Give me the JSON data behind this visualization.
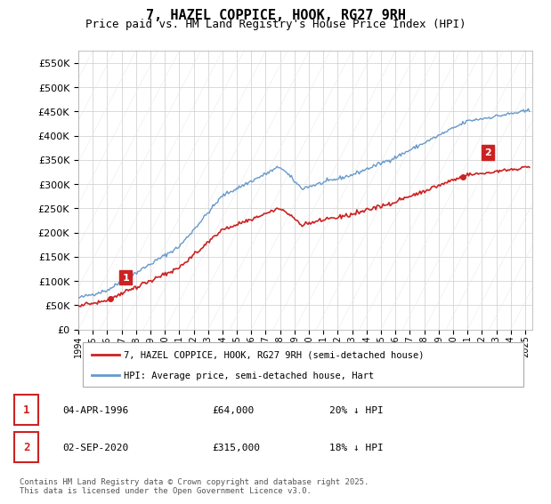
{
  "title": "7, HAZEL COPPICE, HOOK, RG27 9RH",
  "subtitle": "Price paid vs. HM Land Registry's House Price Index (HPI)",
  "legend_line1": "7, HAZEL COPPICE, HOOK, RG27 9RH (semi-detached house)",
  "legend_line2": "HPI: Average price, semi-detached house, Hart",
  "footnote": "Contains HM Land Registry data © Crown copyright and database right 2025.\nThis data is licensed under the Open Government Licence v3.0.",
  "sale1_label": "1",
  "sale1_date": "04-APR-1996",
  "sale1_price": "£64,000",
  "sale1_hpi": "20% ↓ HPI",
  "sale2_label": "2",
  "sale2_date": "02-SEP-2020",
  "sale2_price": "£315,000",
  "sale2_hpi": "18% ↓ HPI",
  "ylim": [
    0,
    575000
  ],
  "yticks": [
    0,
    50000,
    100000,
    150000,
    200000,
    250000,
    300000,
    350000,
    400000,
    450000,
    500000,
    550000
  ],
  "xstart": 1994,
  "xend": 2025.5,
  "hpi_color": "#6699cc",
  "price_color": "#cc2222",
  "sale_marker_color": "#cc2222",
  "background_color": "#ffffff",
  "grid_color": "#cccccc",
  "annotation_box_color": "#cc2222"
}
